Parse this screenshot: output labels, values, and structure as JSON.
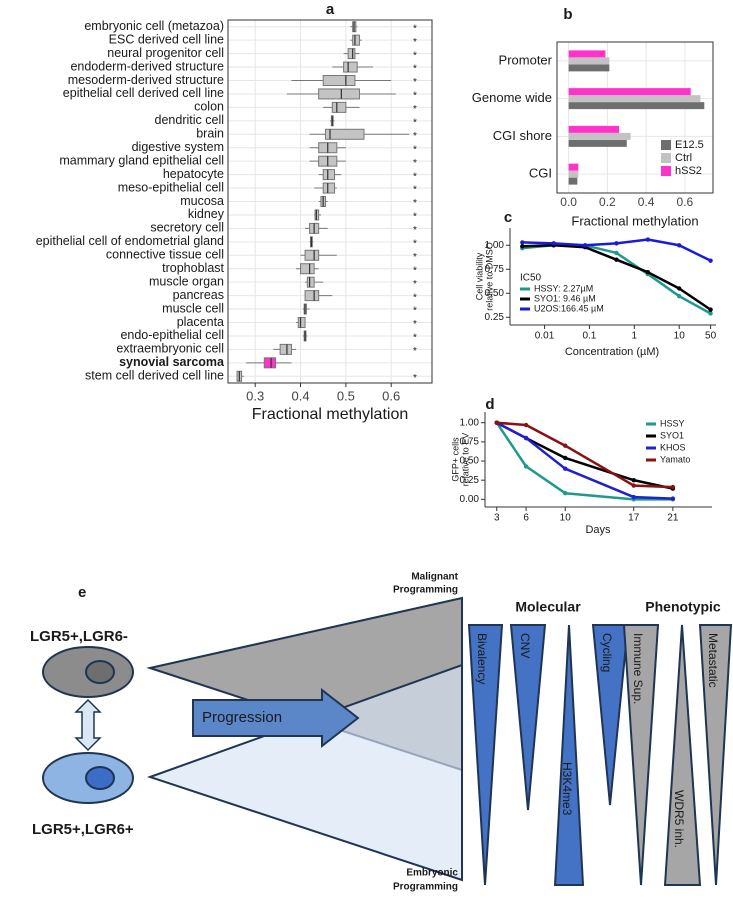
{
  "chart_data": [
    {
      "type": "box",
      "label": "a",
      "xlabel": "Fractional methylation",
      "categories": [
        "embryonic cell (metazoa)",
        "ESC derived cell line",
        "neural progenitor cell",
        "endoderm-derived structure",
        "mesoderm-derived structure",
        "epithelial cell derived cell line",
        "colon",
        "dendritic cell",
        "brain",
        "digestive system",
        "mammary gland epithelial cell",
        "hepatocyte",
        "meso-epithelial cell",
        "mucosa",
        "kidney",
        "secretory cell",
        "epithelial cell of endometrial gland",
        "connective tissue cell",
        "trophoblast",
        "muscle organ",
        "pancreas",
        "muscle cell",
        "placenta",
        "endo-epithelial cell",
        "extraembryonic cell",
        "synovial sarcoma",
        "stem cell derived cell line"
      ],
      "boxes": [
        [
          0.51,
          0.515,
          0.518,
          0.522,
          0.525
        ],
        [
          0.51,
          0.515,
          0.52,
          0.53,
          0.535
        ],
        [
          0.495,
          0.505,
          0.515,
          0.52,
          0.53
        ],
        [
          0.47,
          0.495,
          0.505,
          0.525,
          0.56
        ],
        [
          0.38,
          0.45,
          0.5,
          0.52,
          0.6
        ],
        [
          0.37,
          0.44,
          0.49,
          0.53,
          0.61
        ],
        [
          0.45,
          0.47,
          0.48,
          0.5,
          0.53
        ],
        [
          0.465,
          0.468,
          0.47,
          0.472,
          0.475
        ],
        [
          0.42,
          0.455,
          0.465,
          0.54,
          0.64
        ],
        [
          0.42,
          0.44,
          0.46,
          0.48,
          0.5
        ],
        [
          0.42,
          0.44,
          0.46,
          0.48,
          0.5
        ],
        [
          0.44,
          0.45,
          0.46,
          0.475,
          0.49
        ],
        [
          0.43,
          0.45,
          0.46,
          0.475,
          0.48
        ],
        [
          0.44,
          0.445,
          0.45,
          0.455,
          0.46
        ],
        [
          0.43,
          0.432,
          0.435,
          0.44,
          0.445
        ],
        [
          0.41,
          0.42,
          0.43,
          0.44,
          0.46
        ],
        [
          0.42,
          0.422,
          0.424,
          0.426,
          0.428
        ],
        [
          0.4,
          0.41,
          0.43,
          0.44,
          0.48
        ],
        [
          0.39,
          0.4,
          0.42,
          0.43,
          0.44
        ],
        [
          0.41,
          0.415,
          0.42,
          0.43,
          0.45
        ],
        [
          0.41,
          0.41,
          0.43,
          0.44,
          0.47
        ],
        [
          0.405,
          0.408,
          0.41,
          0.413,
          0.42
        ],
        [
          0.39,
          0.395,
          0.4,
          0.41,
          0.41
        ],
        [
          0.405,
          0.408,
          0.41,
          0.412,
          0.415
        ],
        [
          0.34,
          0.355,
          0.37,
          0.38,
          0.39
        ],
        [
          0.28,
          0.32,
          0.335,
          0.345,
          0.38
        ],
        [
          0.26,
          0.26,
          0.265,
          0.27,
          0.275
        ]
      ],
      "significance": [
        "*",
        "*",
        "*",
        "*",
        "*",
        "*",
        "*",
        "*",
        "*",
        "*",
        "*",
        "*",
        "*",
        "*",
        "*",
        "*",
        "*",
        "*",
        "*",
        "*",
        "*",
        "*",
        "*",
        "*",
        "*",
        null,
        "*"
      ],
      "color": "#c4c4c4",
      "highlight_index": 25,
      "highlight_color": "#ff33cc",
      "xlim": [
        0.24,
        0.69
      ],
      "xticks": [
        0.3,
        0.4,
        0.5,
        0.6
      ],
      "grid": true
    },
    {
      "type": "bar",
      "orientation": "horizontal",
      "label": "b",
      "xlabel": "Fractional methylation",
      "categories": [
        "CGI",
        "CGI shore",
        "Genome wide",
        "Promoter"
      ],
      "series": [
        {
          "name": "E12.5",
          "color": "#6e6e6e",
          "values": [
            0.045,
            0.3,
            0.7,
            0.21
          ]
        },
        {
          "name": "Ctrl",
          "color": "#c2c2c2",
          "values": [
            0.05,
            0.32,
            0.68,
            0.21
          ]
        },
        {
          "name": "hSS2",
          "color": "#ff33cc",
          "values": [
            0.05,
            0.26,
            0.63,
            0.19
          ]
        }
      ],
      "xlim": [
        -0.06,
        0.745
      ],
      "xticks": [
        {
          "value": 0,
          "label": "0.0"
        },
        0.2,
        0.4,
        0.6
      ],
      "grid": true,
      "legend": "bottom-right"
    },
    {
      "type": "line",
      "label": "c",
      "xlabel": "Concentration (µM)",
      "ylabel": [
        "Cell viability",
        "relative to DMSO"
      ],
      "x": [
        0.0032,
        0.016,
        0.08,
        0.4,
        2,
        10,
        50
      ],
      "xlog": true,
      "series": [
        {
          "name": "HSSY: 2.27µM",
          "color": "#1e9a8c",
          "values": [
            0.97,
            1.0,
            1.0,
            0.92,
            0.7,
            0.47,
            0.29
          ]
        },
        {
          "name": "SYO1: 9.46 µM",
          "color": "#000000",
          "values": [
            0.99,
            1.0,
            0.98,
            0.85,
            0.72,
            0.55,
            0.33
          ]
        },
        {
          "name": "U2OS:166.45 µM",
          "color": "#1a1adb",
          "values": [
            1.03,
            1.02,
            1.0,
            1.02,
            1.06,
            1.0,
            0.84
          ]
        }
      ],
      "legend_title": "IC50",
      "legend": "bottom-left",
      "xlim": [
        0.0017,
        66
      ],
      "xticks": [
        0.01,
        0.1,
        1,
        10,
        50
      ],
      "ylim": [
        0.17,
        1.18
      ],
      "yticks": [
        0.25,
        {
          "value": 0.5,
          "label": "0.50"
        },
        0.75,
        {
          "value": 1,
          "label": "1.00"
        }
      ],
      "grid": false
    },
    {
      "type": "line",
      "label": "d",
      "xlabel": "Days",
      "ylabel": [
        "GFP+ cells",
        "relative to EV"
      ],
      "x": [
        3,
        6,
        10,
        17,
        21
      ],
      "xlog": false,
      "series": [
        {
          "name": "HSSY",
          "color": "#1e9a8c",
          "values": [
            1,
            0.43,
            0.08,
            0.0,
            0.0
          ]
        },
        {
          "name": "SYO1",
          "color": "#000000",
          "values": [
            1,
            0.8,
            0.54,
            0.25,
            0.14
          ]
        },
        {
          "name": "KHOS",
          "color": "#2020d0",
          "values": [
            1,
            0.8,
            0.4,
            0.03,
            0.01
          ]
        },
        {
          "name": "Yamato",
          "color": "#8b1010",
          "values": [
            1,
            0.97,
            0.7,
            0.18,
            0.16
          ]
        }
      ],
      "legend": "top-right",
      "xlim": [
        1.8,
        25
      ],
      "xticks": [
        3,
        6,
        10,
        17,
        21
      ],
      "ylim": [
        -0.1,
        1.14
      ],
      "yticks": [
        {
          "value": 0,
          "label": "0.00"
        },
        0.25,
        {
          "value": 0.5,
          "label": "0.50"
        },
        0.75,
        {
          "value": 1,
          "label": "1.00"
        }
      ],
      "grid": false
    }
  ],
  "diagram": {
    "label": "e",
    "cells": [
      "LGR5+,LGR6-",
      "LGR5+,LGR6+"
    ],
    "arrow": "Progression",
    "top": [
      "Malignant",
      "Programming"
    ],
    "bottom": [
      "Embryonic",
      "Programming"
    ],
    "groups": [
      {
        "title": "Molecular",
        "items": [
          "Bivalency",
          "CNV",
          "H3K4me3",
          "Cycling"
        ]
      },
      {
        "title": "Phenotypic",
        "items": [
          "Immune Sup.",
          "WDR5 inh.",
          "Metastatic"
        ]
      }
    ]
  }
}
